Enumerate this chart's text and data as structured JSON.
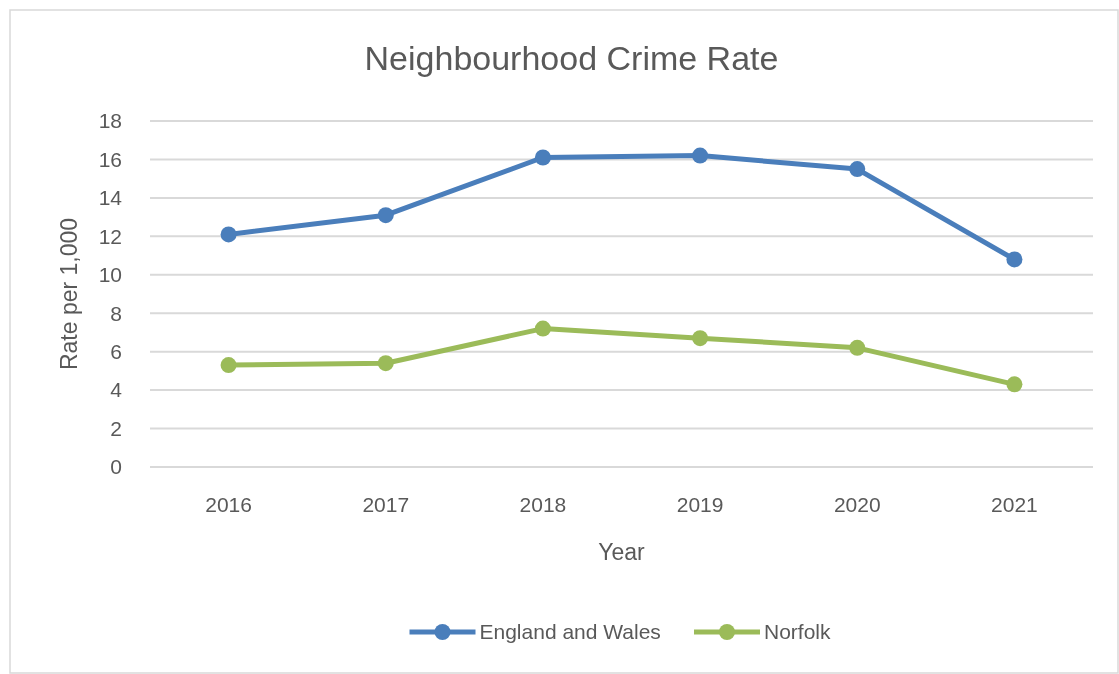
{
  "chart_data": {
    "type": "line",
    "title": "Neighbourhood Crime Rate",
    "xlabel": "Year",
    "ylabel": "Rate per 1,000",
    "categories": [
      "2016",
      "2017",
      "2018",
      "2019",
      "2020",
      "2021"
    ],
    "series": [
      {
        "name": "England and Wales",
        "color": "#4a7ebb",
        "values": [
          12.1,
          13.1,
          16.1,
          16.2,
          15.5,
          10.8
        ]
      },
      {
        "name": "Norfolk",
        "color": "#9bbb59",
        "values": [
          5.3,
          5.4,
          7.2,
          6.7,
          6.2,
          4.3
        ]
      }
    ],
    "ylim": [
      0,
      18
    ],
    "yticks": [
      0,
      2,
      4,
      6,
      8,
      10,
      12,
      14,
      16,
      18
    ],
    "grid": "y",
    "legend": "bottom",
    "marker": "circle",
    "line_style": "solid"
  }
}
